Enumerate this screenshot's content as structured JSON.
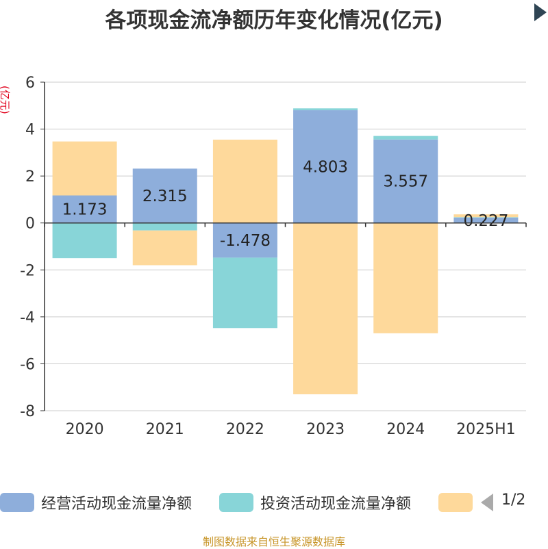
{
  "title": "各项现金流净额历年变化情况(亿元)",
  "source": "制图数据来自恒生聚源数据库",
  "chart_data": {
    "type": "bar",
    "stacked": true,
    "title": "各项现金流净额历年变化情况(亿元)",
    "ylabel": "(亿元)",
    "ylim": [
      -8,
      6
    ],
    "yticks": [
      -8,
      -6,
      -4,
      -2,
      0,
      2,
      4,
      6
    ],
    "grid": true,
    "categories": [
      "2020",
      "2021",
      "2022",
      "2023",
      "2024",
      "2025H1"
    ],
    "series": [
      {
        "name": "经营活动现金流量净额",
        "color": "#8eaedb",
        "values": [
          1.173,
          2.315,
          -1.478,
          4.803,
          3.557,
          0.227
        ],
        "labels": [
          "1.173",
          "2.315",
          "-1.478",
          "4.803",
          "3.557",
          "0.227"
        ]
      },
      {
        "name": "投资活动现金流量净额",
        "color": "#88d5d8",
        "values": [
          -1.5,
          -0.32,
          -3.0,
          0.08,
          0.15,
          0.02
        ]
      },
      {
        "name": "",
        "color": "#fed99b",
        "values": [
          2.3,
          -1.48,
          3.55,
          -7.3,
          -4.7,
          0.12
        ]
      }
    ]
  },
  "legend": {
    "position": "bottom",
    "page": "1/2"
  }
}
